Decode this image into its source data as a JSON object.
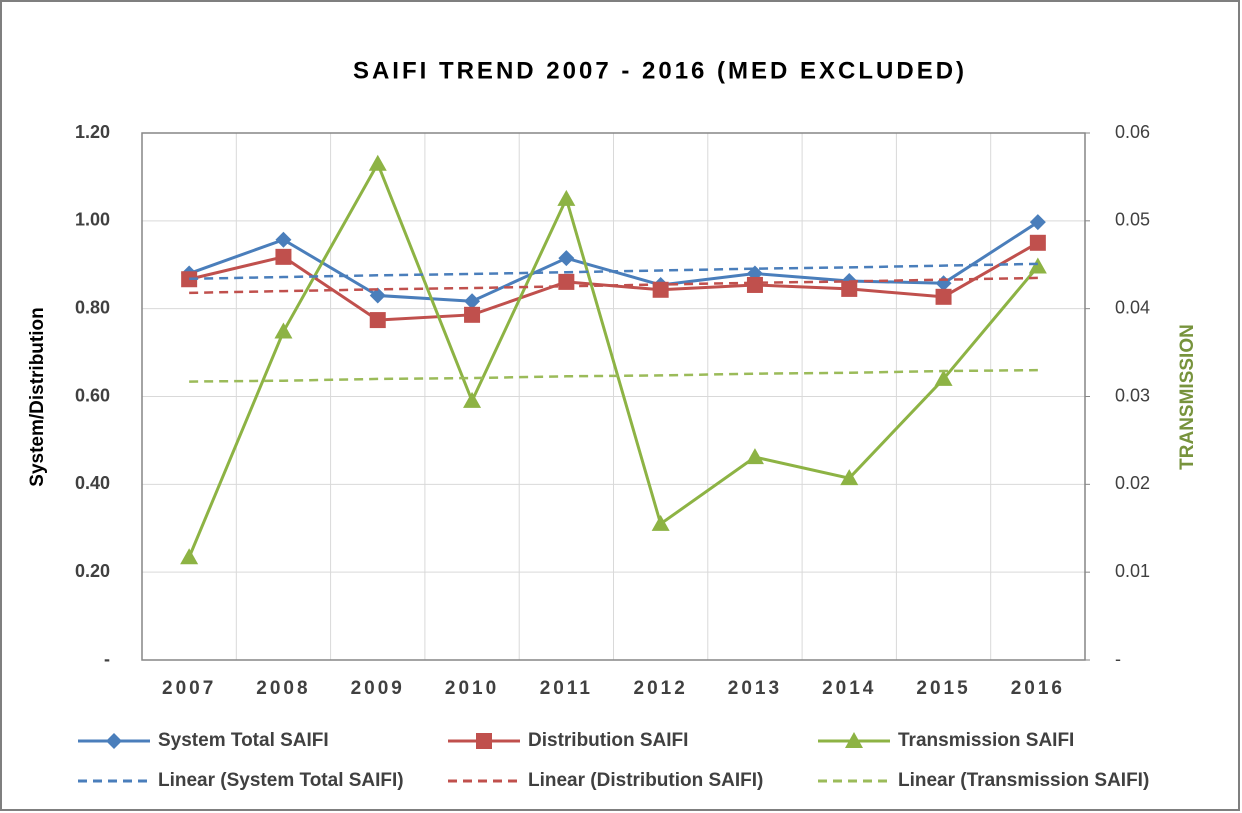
{
  "chart_data": {
    "type": "line",
    "title": "SAIFI TREND 2007 - 2016 (MED EXCLUDED)",
    "y_label": "System/Distribution",
    "y2_label": "TRANSMISSION",
    "categories": [
      "2007",
      "2008",
      "2009",
      "2010",
      "2011",
      "2012",
      "2013",
      "2014",
      "2015",
      "2016"
    ],
    "series": [
      {
        "name": "System Total SAIFI",
        "color": "#4a7ebb",
        "marker": "diamond",
        "line_style": "solid",
        "axis": "y",
        "values": [
          0.88,
          0.957,
          0.83,
          0.817,
          0.915,
          0.854,
          0.88,
          0.863,
          0.858,
          0.997
        ]
      },
      {
        "name": "Distribution SAIFI",
        "color": "#c0504d",
        "marker": "square",
        "line_style": "solid",
        "axis": "y",
        "values": [
          0.867,
          0.918,
          0.774,
          0.786,
          0.861,
          0.843,
          0.854,
          0.845,
          0.827,
          0.95
        ]
      },
      {
        "name": "Transmission SAIFI",
        "color": "#8db344",
        "marker": "triangle",
        "line_style": "solid",
        "axis": "y2",
        "values": [
          0.0117,
          0.0374,
          0.0565,
          0.0295,
          0.0525,
          0.0155,
          0.0231,
          0.0207,
          0.032,
          0.0448
        ]
      },
      {
        "name": "Linear (System Total SAIFI)",
        "color": "#4a7ebb",
        "marker": "none",
        "line_style": "dashed",
        "axis": "y",
        "values": [
          0.868,
          0.872,
          0.876,
          0.879,
          0.883,
          0.887,
          0.891,
          0.894,
          0.898,
          0.902
        ]
      },
      {
        "name": "Linear (Distribution SAIFI)",
        "color": "#c0504d",
        "marker": "none",
        "line_style": "dashed",
        "axis": "y",
        "values": [
          0.836,
          0.84,
          0.844,
          0.847,
          0.851,
          0.855,
          0.859,
          0.862,
          0.866,
          0.87
        ]
      },
      {
        "name": "Linear (Transmission SAIFI)",
        "color": "#9bbb59",
        "marker": "none",
        "line_style": "dashed",
        "axis": "y2",
        "values": [
          0.0317,
          0.0318,
          0.032,
          0.0321,
          0.0323,
          0.0324,
          0.0326,
          0.0327,
          0.0329,
          0.033
        ]
      }
    ],
    "ylim": [
      0,
      1.2
    ],
    "yticks": [
      {
        "value": 0,
        "label": "-"
      },
      {
        "value": 0.2,
        "label": "0.20"
      },
      {
        "value": 0.4,
        "label": "0.40"
      },
      {
        "value": 0.6,
        "label": "0.60"
      },
      {
        "value": 0.8,
        "label": "0.80"
      },
      {
        "value": 1.0,
        "label": "1.00"
      },
      {
        "value": 1.2,
        "label": "1.20"
      }
    ],
    "y2lim": [
      0,
      0.06
    ],
    "y2ticks": [
      {
        "value": 0,
        "label": "-"
      },
      0.01,
      0.02,
      0.03,
      0.04,
      0.05,
      0.06
    ],
    "y2_label_color": "#77933c",
    "grid": true,
    "legend": "bottom"
  }
}
